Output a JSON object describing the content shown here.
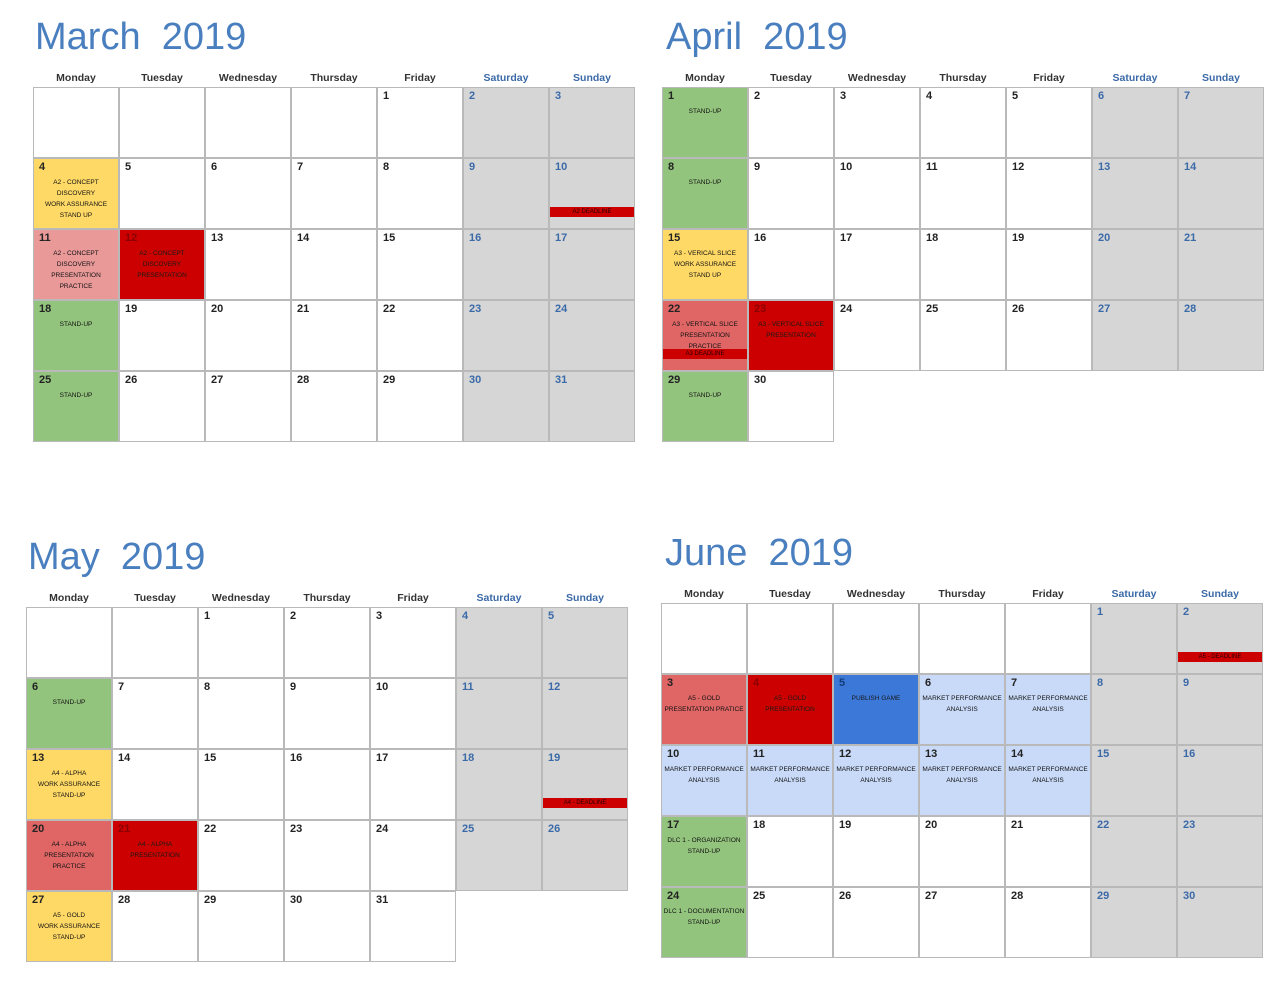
{
  "days": [
    "Monday",
    "Tuesday",
    "Wednesday",
    "Thursday",
    "Friday",
    "Saturday",
    "Sunday"
  ],
  "colors": {
    "title": "#4a7fbf",
    "weekend": "#d6d6d6",
    "green": "#93c47d",
    "yellow": "#ffd966",
    "pink": "#ea9999",
    "salmon": "#e06666",
    "red": "#cc0000",
    "blue": "#3c78d8",
    "lightblue": "#c9daf8"
  },
  "months": [
    {
      "title": "March  2019",
      "start_offset": 4,
      "days_in_month": 31,
      "events": {
        "4": {
          "color": "yellow",
          "lines": [
            "A2 - CONCEPT DISCOVERY",
            "WORK ASSURANCE",
            "STAND UP"
          ]
        },
        "10": {
          "deadline": "A2 DEADLINE"
        },
        "11": {
          "color": "pink",
          "lines": [
            "A2 - CONCEPT DISCOVERY",
            "PRESENTATION PRACTICE"
          ]
        },
        "12": {
          "color": "red",
          "lines": [
            "A2 - CONCEPT DISCOVERY",
            "PRESENTATION"
          ]
        },
        "18": {
          "color": "green",
          "lines": [
            "STAND-UP"
          ]
        },
        "25": {
          "color": "green",
          "lines": [
            "STAND-UP"
          ]
        }
      }
    },
    {
      "title": "April  2019",
      "start_offset": 0,
      "days_in_month": 30,
      "events": {
        "1": {
          "color": "green",
          "lines": [
            "STAND-UP"
          ]
        },
        "8": {
          "color": "green",
          "lines": [
            "STAND-UP"
          ]
        },
        "15": {
          "color": "yellow",
          "lines": [
            "A3 - VERICAL SLICE",
            "WORK ASSURANCE",
            "STAND UP"
          ]
        },
        "22": {
          "color": "salmon",
          "lines": [
            "A3 - VERTICAL SLICE",
            "PRESENTATION PRACTICE"
          ],
          "deadline": "A3 DEADLINE"
        },
        "23": {
          "color": "red",
          "lines": [
            "A3 - VERTICAL SLICE",
            "PRESENTATION"
          ]
        },
        "29": {
          "color": "green",
          "lines": [
            "STAND-UP"
          ]
        }
      }
    },
    {
      "title": "May  2019",
      "start_offset": 2,
      "days_in_month": 31,
      "events": {
        "6": {
          "color": "green",
          "lines": [
            "STAND-UP"
          ]
        },
        "13": {
          "color": "yellow",
          "lines": [
            "A4 - ALPHA",
            "WORK ASSURANCE",
            "STAND-UP"
          ]
        },
        "19": {
          "deadline": "A4 - DEADLINE"
        },
        "20": {
          "color": "salmon",
          "lines": [
            "A4 - ALPHA",
            "PRESENTATION PRACTICE"
          ]
        },
        "21": {
          "color": "red",
          "lines": [
            "A4 - ALPHA",
            "PRESENTATION"
          ]
        },
        "27": {
          "color": "yellow",
          "lines": [
            "A5 - GOLD",
            "WORK ASSURANCE",
            "STAND-UP"
          ]
        }
      }
    },
    {
      "title": "June  2019",
      "start_offset": 5,
      "days_in_month": 30,
      "events": {
        "2": {
          "deadline": "A5 - DEADLINE"
        },
        "3": {
          "color": "salmon",
          "lines": [
            "A5 - GOLD",
            "PRESENTATION PRATICE"
          ]
        },
        "4": {
          "color": "red",
          "lines": [
            "A5 - GOLD",
            "PRESENTATION"
          ]
        },
        "5": {
          "color": "blue",
          "lines": [
            "PUBLISH GAME"
          ]
        },
        "6": {
          "color": "lightblue",
          "lines": [
            "MARKET PERFORMANCE",
            "ANALYSIS"
          ]
        },
        "7": {
          "color": "lightblue",
          "lines": [
            "MARKET PERFORMANCE",
            "ANALYSIS"
          ]
        },
        "10": {
          "color": "lightblue",
          "lines": [
            "MARKET PERFORMANCE",
            "ANALYSIS"
          ]
        },
        "11": {
          "color": "lightblue",
          "lines": [
            "MARKET PERFORMANCE",
            "ANALYSIS"
          ]
        },
        "12": {
          "color": "lightblue",
          "lines": [
            "MARKET PERFORMANCE",
            "ANALYSIS"
          ]
        },
        "13": {
          "color": "lightblue",
          "lines": [
            "MARKET PERFORMANCE",
            "ANALYSIS"
          ]
        },
        "14": {
          "color": "lightblue",
          "lines": [
            "MARKET PERFORMANCE",
            "ANALYSIS"
          ]
        },
        "17": {
          "color": "green",
          "lines": [
            "DLC 1 - ORGANIZATION",
            "STAND-UP"
          ]
        },
        "24": {
          "color": "green",
          "lines": [
            "DLC 1 - DOCUMENTATION",
            "STAND-UP"
          ]
        }
      }
    }
  ]
}
